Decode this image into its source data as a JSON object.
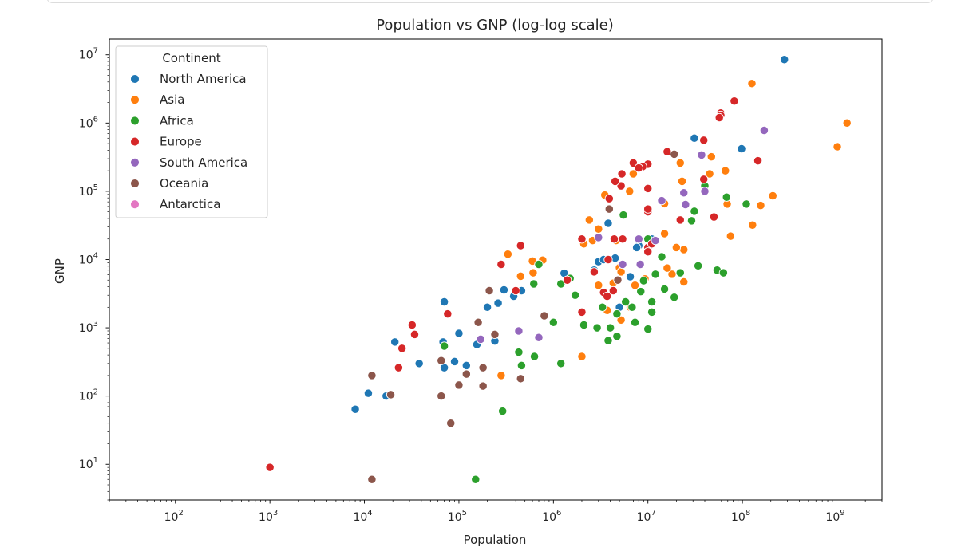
{
  "chart_data": {
    "type": "scatter",
    "title": "Population vs GNP (log-log scale)",
    "xlabel": "Population",
    "ylabel": "GNP",
    "xscale": "log",
    "yscale": "log",
    "xlim": [
      20,
      3000000000
    ],
    "ylim": [
      3,
      17000000
    ],
    "grid": false,
    "legend_position": "top-left",
    "x_ticks": [
      {
        "value": 100,
        "base": "10",
        "exp": "2"
      },
      {
        "value": 1000,
        "base": "10",
        "exp": "3"
      },
      {
        "value": 10000,
        "base": "10",
        "exp": "4"
      },
      {
        "value": 100000,
        "base": "10",
        "exp": "5"
      },
      {
        "value": 1000000,
        "base": "10",
        "exp": "6"
      },
      {
        "value": 10000000,
        "base": "10",
        "exp": "7"
      },
      {
        "value": 100000000,
        "base": "10",
        "exp": "8"
      },
      {
        "value": 1000000000,
        "base": "10",
        "exp": "9"
      }
    ],
    "y_ticks": [
      {
        "value": 10,
        "base": "10",
        "exp": "1"
      },
      {
        "value": 100,
        "base": "10",
        "exp": "2"
      },
      {
        "value": 1000,
        "base": "10",
        "exp": "3"
      },
      {
        "value": 10000,
        "base": "10",
        "exp": "4"
      },
      {
        "value": 100000,
        "base": "10",
        "exp": "5"
      },
      {
        "value": 1000000,
        "base": "10",
        "exp": "6"
      },
      {
        "value": 10000000,
        "base": "10",
        "exp": "7"
      }
    ],
    "legend_title": "Continent",
    "series": [
      {
        "name": "North America",
        "color": "#1f77b4",
        "points": [
          [
            278000000,
            8500000
          ],
          [
            31000000,
            600000
          ],
          [
            98000000,
            420000
          ],
          [
            3800000,
            34000
          ],
          [
            8000000,
            16000
          ],
          [
            7600000,
            15000
          ],
          [
            1300000,
            6300
          ],
          [
            3000000,
            9300
          ],
          [
            3400000,
            10000
          ],
          [
            4500000,
            10500
          ],
          [
            11000000,
            20000
          ],
          [
            6500000,
            5600
          ],
          [
            2700000,
            7000
          ],
          [
            5000000,
            2000
          ],
          [
            70000,
            2400
          ],
          [
            200000,
            2000
          ],
          [
            300000,
            3600
          ],
          [
            260000,
            2300
          ],
          [
            380000,
            2900
          ],
          [
            460000,
            3500
          ],
          [
            240000,
            640
          ],
          [
            100000,
            830
          ],
          [
            155000,
            570
          ],
          [
            68000,
            620
          ],
          [
            120000,
            280
          ],
          [
            70000,
            260
          ],
          [
            21000,
            620
          ],
          [
            90000,
            320
          ],
          [
            38000,
            300
          ],
          [
            11000,
            110
          ],
          [
            17000,
            100
          ],
          [
            8000,
            64
          ]
        ]
      },
      {
        "name": "Asia",
        "color": "#ff7f0e",
        "points": [
          [
            1280000000,
            1000000
          ],
          [
            1010000000,
            450000
          ],
          [
            126000000,
            3800000
          ],
          [
            47000000,
            320000
          ],
          [
            22000000,
            260000
          ],
          [
            66000000,
            200000
          ],
          [
            45000000,
            180000
          ],
          [
            23000000,
            140000
          ],
          [
            3500000,
            88000
          ],
          [
            6400000,
            100000
          ],
          [
            7000000,
            180000
          ],
          [
            3000000,
            28000
          ],
          [
            2400000,
            38000
          ],
          [
            2100000,
            17000
          ],
          [
            2600000,
            19000
          ],
          [
            4600000,
            19000
          ],
          [
            75000000,
            22000
          ],
          [
            210000000,
            86000
          ],
          [
            156000000,
            62000
          ],
          [
            128000000,
            32000
          ],
          [
            69000000,
            65000
          ],
          [
            24000000,
            14000
          ],
          [
            20000000,
            15000
          ],
          [
            15000000,
            24000
          ],
          [
            18000000,
            6100
          ],
          [
            24000000,
            4700
          ],
          [
            16000000,
            7500
          ],
          [
            15000000,
            66000
          ],
          [
            5000000,
            7600
          ],
          [
            5200000,
            6600
          ],
          [
            3000000,
            4200
          ],
          [
            4300000,
            4500
          ],
          [
            7300000,
            4200
          ],
          [
            9300000,
            5200
          ],
          [
            3700000,
            1800
          ],
          [
            5200000,
            1300
          ],
          [
            6500000,
            2000
          ],
          [
            2000000,
            380
          ],
          [
            330000,
            12000
          ],
          [
            600000,
            9500
          ],
          [
            770000,
            9800
          ],
          [
            450000,
            5700
          ],
          [
            610000,
            6400
          ],
          [
            280000,
            200
          ]
        ]
      },
      {
        "name": "Africa",
        "color": "#2ca02c",
        "points": [
          [
            68000000,
            82000
          ],
          [
            40000000,
            120000
          ],
          [
            31000000,
            51000
          ],
          [
            29000000,
            37000
          ],
          [
            14000000,
            11000
          ],
          [
            110000000,
            65000
          ],
          [
            54000000,
            7000
          ],
          [
            63000000,
            6400
          ],
          [
            34000000,
            8100
          ],
          [
            22000000,
            6400
          ],
          [
            10000000,
            20000
          ],
          [
            5500000,
            45000
          ],
          [
            12000000,
            6100
          ],
          [
            11000000,
            2400
          ],
          [
            9000000,
            4900
          ],
          [
            15000000,
            3700
          ],
          [
            19000000,
            2800
          ],
          [
            8400000,
            3400
          ],
          [
            3300000,
            2000
          ],
          [
            6800000,
            2000
          ],
          [
            5800000,
            2400
          ],
          [
            4700000,
            1600
          ],
          [
            2900000,
            1000
          ],
          [
            2100000,
            1100
          ],
          [
            4000000,
            1000
          ],
          [
            7300000,
            1200
          ],
          [
            10000000,
            960
          ],
          [
            4700000,
            750
          ],
          [
            3800000,
            650
          ],
          [
            11000000,
            1700
          ],
          [
            1500000,
            5300
          ],
          [
            1200000,
            4400
          ],
          [
            1200000,
            300
          ],
          [
            1700000,
            3000
          ],
          [
            1000000,
            1200
          ],
          [
            700000,
            8500
          ],
          [
            620000,
            4400
          ],
          [
            430000,
            440
          ],
          [
            630000,
            380
          ],
          [
            460000,
            280
          ],
          [
            70000,
            540
          ],
          [
            290000,
            60
          ],
          [
            150000,
            6
          ]
        ]
      },
      {
        "name": "Europe",
        "color": "#d62728",
        "points": [
          [
            82000000,
            2100000
          ],
          [
            59000000,
            1400000
          ],
          [
            59000000,
            1300000
          ],
          [
            57000000,
            1200000
          ],
          [
            146000000,
            280000
          ],
          [
            39000000,
            560000
          ],
          [
            16000000,
            380000
          ],
          [
            10000000,
            250000
          ],
          [
            8800000,
            230000
          ],
          [
            7000000,
            260000
          ],
          [
            8000000,
            220000
          ],
          [
            5300000,
            180000
          ],
          [
            5200000,
            120000
          ],
          [
            4500000,
            140000
          ],
          [
            39000000,
            150000
          ],
          [
            10000000,
            110000
          ],
          [
            10000000,
            50000
          ],
          [
            22000000,
            38000
          ],
          [
            50000000,
            42000
          ],
          [
            3900000,
            78000
          ],
          [
            10000000,
            55000
          ],
          [
            2000000,
            20000
          ],
          [
            4400000,
            20000
          ],
          [
            5400000,
            20000
          ],
          [
            10000000,
            15000
          ],
          [
            11000000,
            17000
          ],
          [
            10000000,
            13000
          ],
          [
            2700000,
            6600
          ],
          [
            3800000,
            10000
          ],
          [
            1400000,
            5000
          ],
          [
            4300000,
            3500
          ],
          [
            3400000,
            3300
          ],
          [
            3700000,
            2900
          ],
          [
            2000000,
            1700
          ],
          [
            280000,
            8500
          ],
          [
            450000,
            16000
          ],
          [
            400000,
            3500
          ],
          [
            76000,
            1600
          ],
          [
            32000,
            1100
          ],
          [
            34000,
            800
          ],
          [
            25000,
            500
          ],
          [
            23000,
            260
          ],
          [
            1000,
            9
          ]
        ]
      },
      {
        "name": "South America",
        "color": "#9467bd",
        "points": [
          [
            170000000,
            780000
          ],
          [
            37000000,
            340000
          ],
          [
            24000000,
            95000
          ],
          [
            14000000,
            73000
          ],
          [
            40000000,
            100000
          ],
          [
            25000000,
            64000
          ],
          [
            3000000,
            21000
          ],
          [
            8000000,
            20000
          ],
          [
            12000000,
            19000
          ],
          [
            8300000,
            8500
          ],
          [
            5400000,
            8500
          ],
          [
            700000,
            720
          ],
          [
            430000,
            900
          ],
          [
            170000,
            680
          ]
        ]
      },
      {
        "name": "Oceania",
        "color": "#8c564b",
        "points": [
          [
            19000000,
            350000
          ],
          [
            3900000,
            55000
          ],
          [
            4800000,
            5000
          ],
          [
            210000,
            3500
          ],
          [
            240000,
            800
          ],
          [
            800000,
            1500
          ],
          [
            160000,
            1200
          ],
          [
            450000,
            180
          ],
          [
            180000,
            260
          ],
          [
            120000,
            210
          ],
          [
            100000,
            145
          ],
          [
            180000,
            140
          ],
          [
            65000,
            330
          ],
          [
            65000,
            100
          ],
          [
            82000,
            40
          ],
          [
            12000,
            200
          ],
          [
            19000,
            105
          ],
          [
            12000,
            6
          ]
        ]
      },
      {
        "name": "Antarctica",
        "color": "#e377c2",
        "points": []
      }
    ]
  }
}
